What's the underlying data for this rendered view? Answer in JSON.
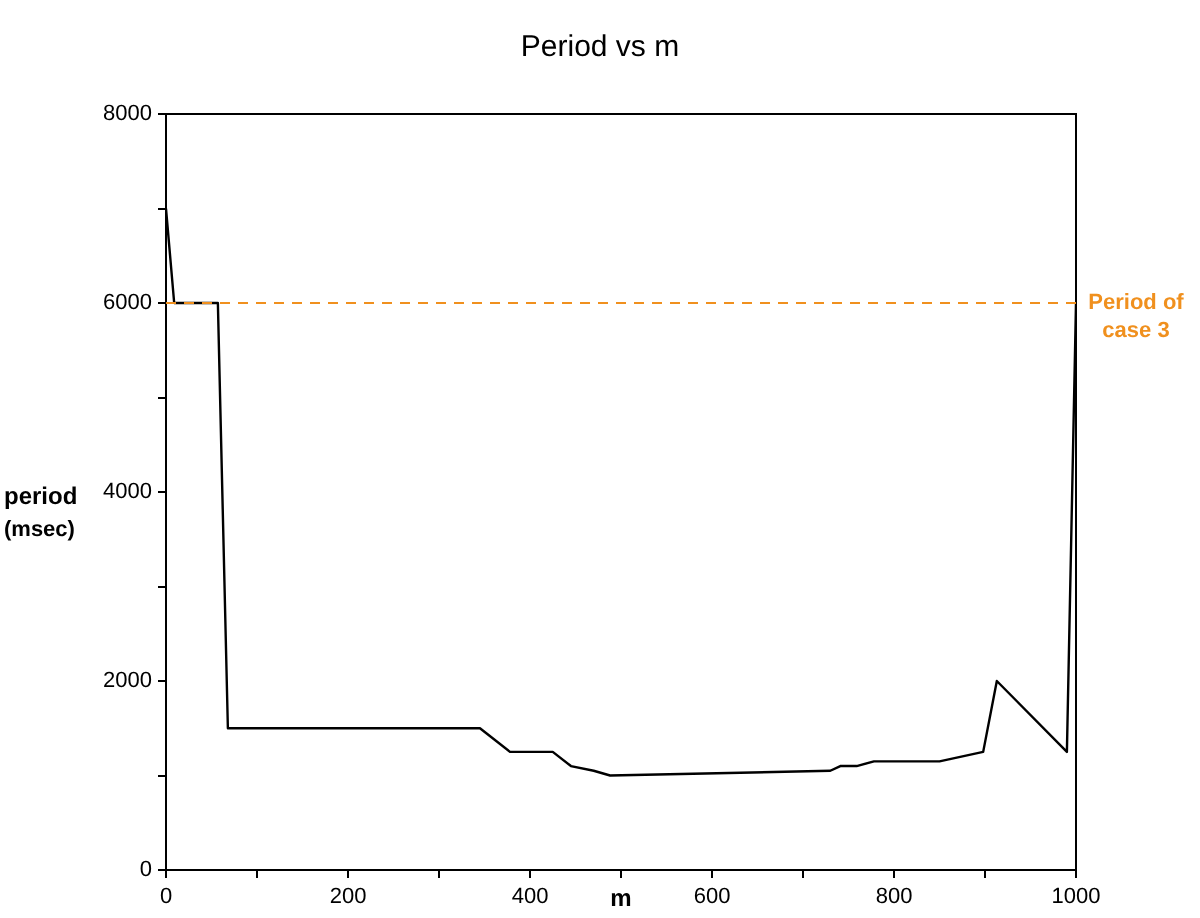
{
  "chart_data": {
    "type": "line",
    "title": "Period vs m",
    "xlabel": "m",
    "ylabel": "period (msec)",
    "x": [
      0,
      9,
      57,
      68,
      345,
      378,
      425,
      445,
      470,
      488,
      730,
      741,
      759,
      778,
      850,
      898,
      913,
      990,
      1000
    ],
    "series": [
      {
        "color": "#000000",
        "values": [
          7000,
          6000,
          6000,
          1500,
          1500,
          1250,
          1250,
          1100,
          1050,
          1000,
          1050,
          1100,
          1100,
          1150,
          1150,
          1250,
          2000,
          1250,
          6000
        ]
      }
    ],
    "xlim": [
      0,
      1000
    ],
    "xticks": [
      0,
      {
        "value": 100,
        "label": null
      },
      200,
      {
        "value": 300,
        "label": null
      },
      400,
      {
        "value": 500,
        "label": null
      },
      600,
      {
        "value": 700,
        "label": null
      },
      800,
      {
        "value": 900,
        "label": null
      },
      1000
    ],
    "ylim": [
      0,
      8000
    ],
    "yticks": [
      0,
      {
        "value": 1000,
        "label": null
      },
      2000,
      {
        "value": 3000,
        "label": null
      },
      4000,
      {
        "value": 5000,
        "label": null
      },
      6000,
      {
        "value": 7000,
        "label": null
      },
      8000
    ],
    "ref_lines": [
      {
        "axis": "y",
        "value": 6000,
        "label": "Period of case 3",
        "color": "#f0901e",
        "line_style": "dashed"
      }
    ],
    "grid": false,
    "legend": false,
    "marker": "none",
    "line_style": "solid"
  }
}
